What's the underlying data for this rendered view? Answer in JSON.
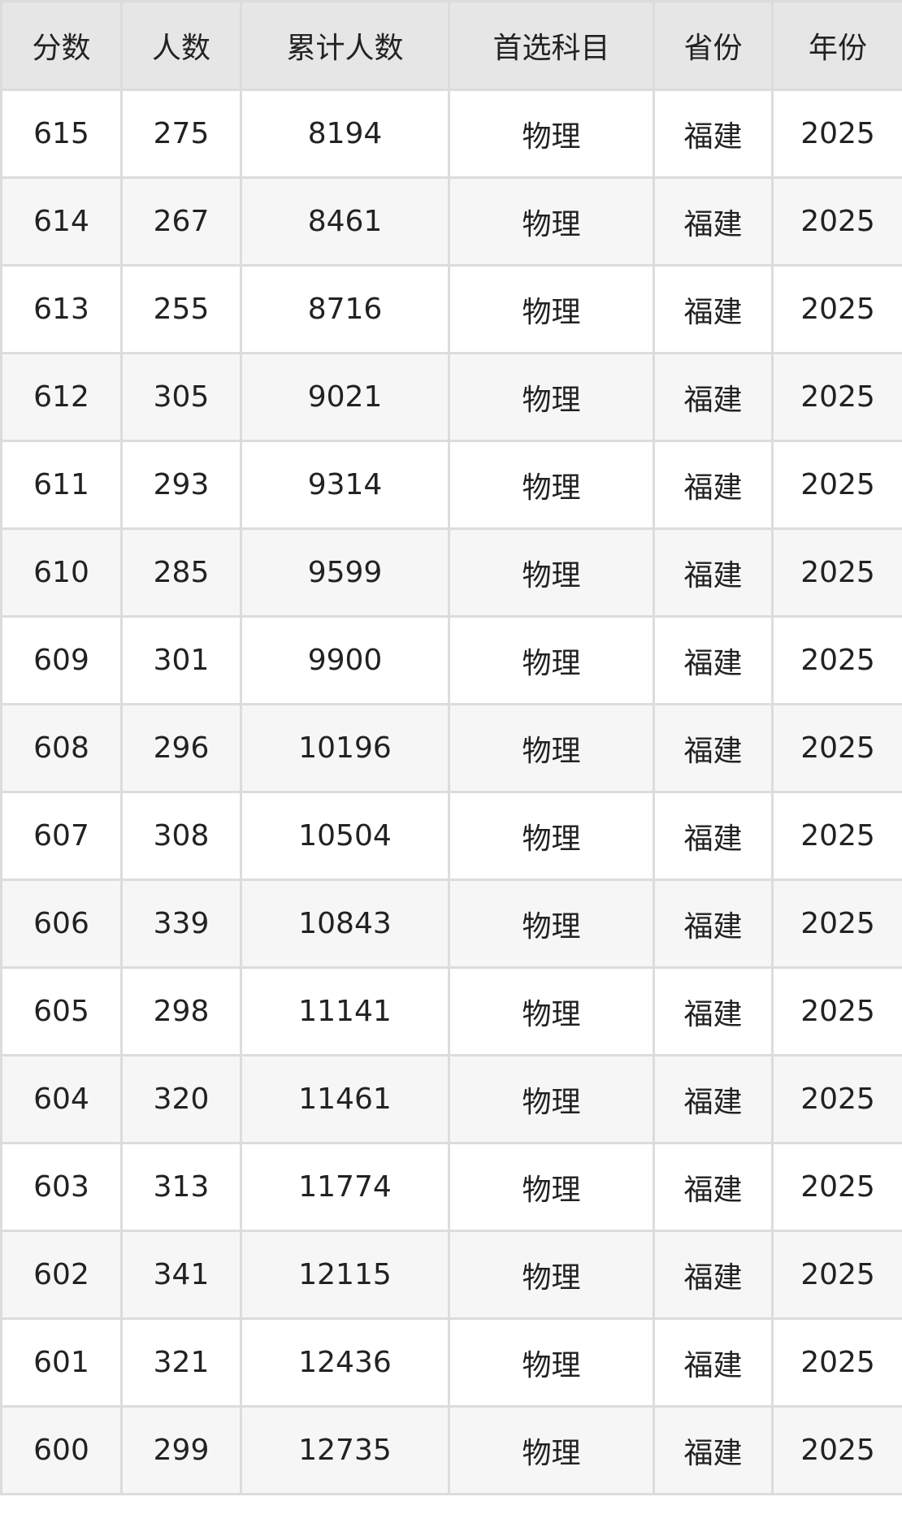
{
  "table": {
    "headers": [
      "分数",
      "人数",
      "累计人数",
      "首选科目",
      "省份",
      "年份"
    ],
    "rows": [
      [
        "615",
        "275",
        "8194",
        "物理",
        "福建",
        "2025"
      ],
      [
        "614",
        "267",
        "8461",
        "物理",
        "福建",
        "2025"
      ],
      [
        "613",
        "255",
        "8716",
        "物理",
        "福建",
        "2025"
      ],
      [
        "612",
        "305",
        "9021",
        "物理",
        "福建",
        "2025"
      ],
      [
        "611",
        "293",
        "9314",
        "物理",
        "福建",
        "2025"
      ],
      [
        "610",
        "285",
        "9599",
        "物理",
        "福建",
        "2025"
      ],
      [
        "609",
        "301",
        "9900",
        "物理",
        "福建",
        "2025"
      ],
      [
        "608",
        "296",
        "10196",
        "物理",
        "福建",
        "2025"
      ],
      [
        "607",
        "308",
        "10504",
        "物理",
        "福建",
        "2025"
      ],
      [
        "606",
        "339",
        "10843",
        "物理",
        "福建",
        "2025"
      ],
      [
        "605",
        "298",
        "11141",
        "物理",
        "福建",
        "2025"
      ],
      [
        "604",
        "320",
        "11461",
        "物理",
        "福建",
        "2025"
      ],
      [
        "603",
        "313",
        "11774",
        "物理",
        "福建",
        "2025"
      ],
      [
        "602",
        "341",
        "12115",
        "物理",
        "福建",
        "2025"
      ],
      [
        "601",
        "321",
        "12436",
        "物理",
        "福建",
        "2025"
      ],
      [
        "600",
        "299",
        "12735",
        "物理",
        "福建",
        "2025"
      ]
    ]
  }
}
